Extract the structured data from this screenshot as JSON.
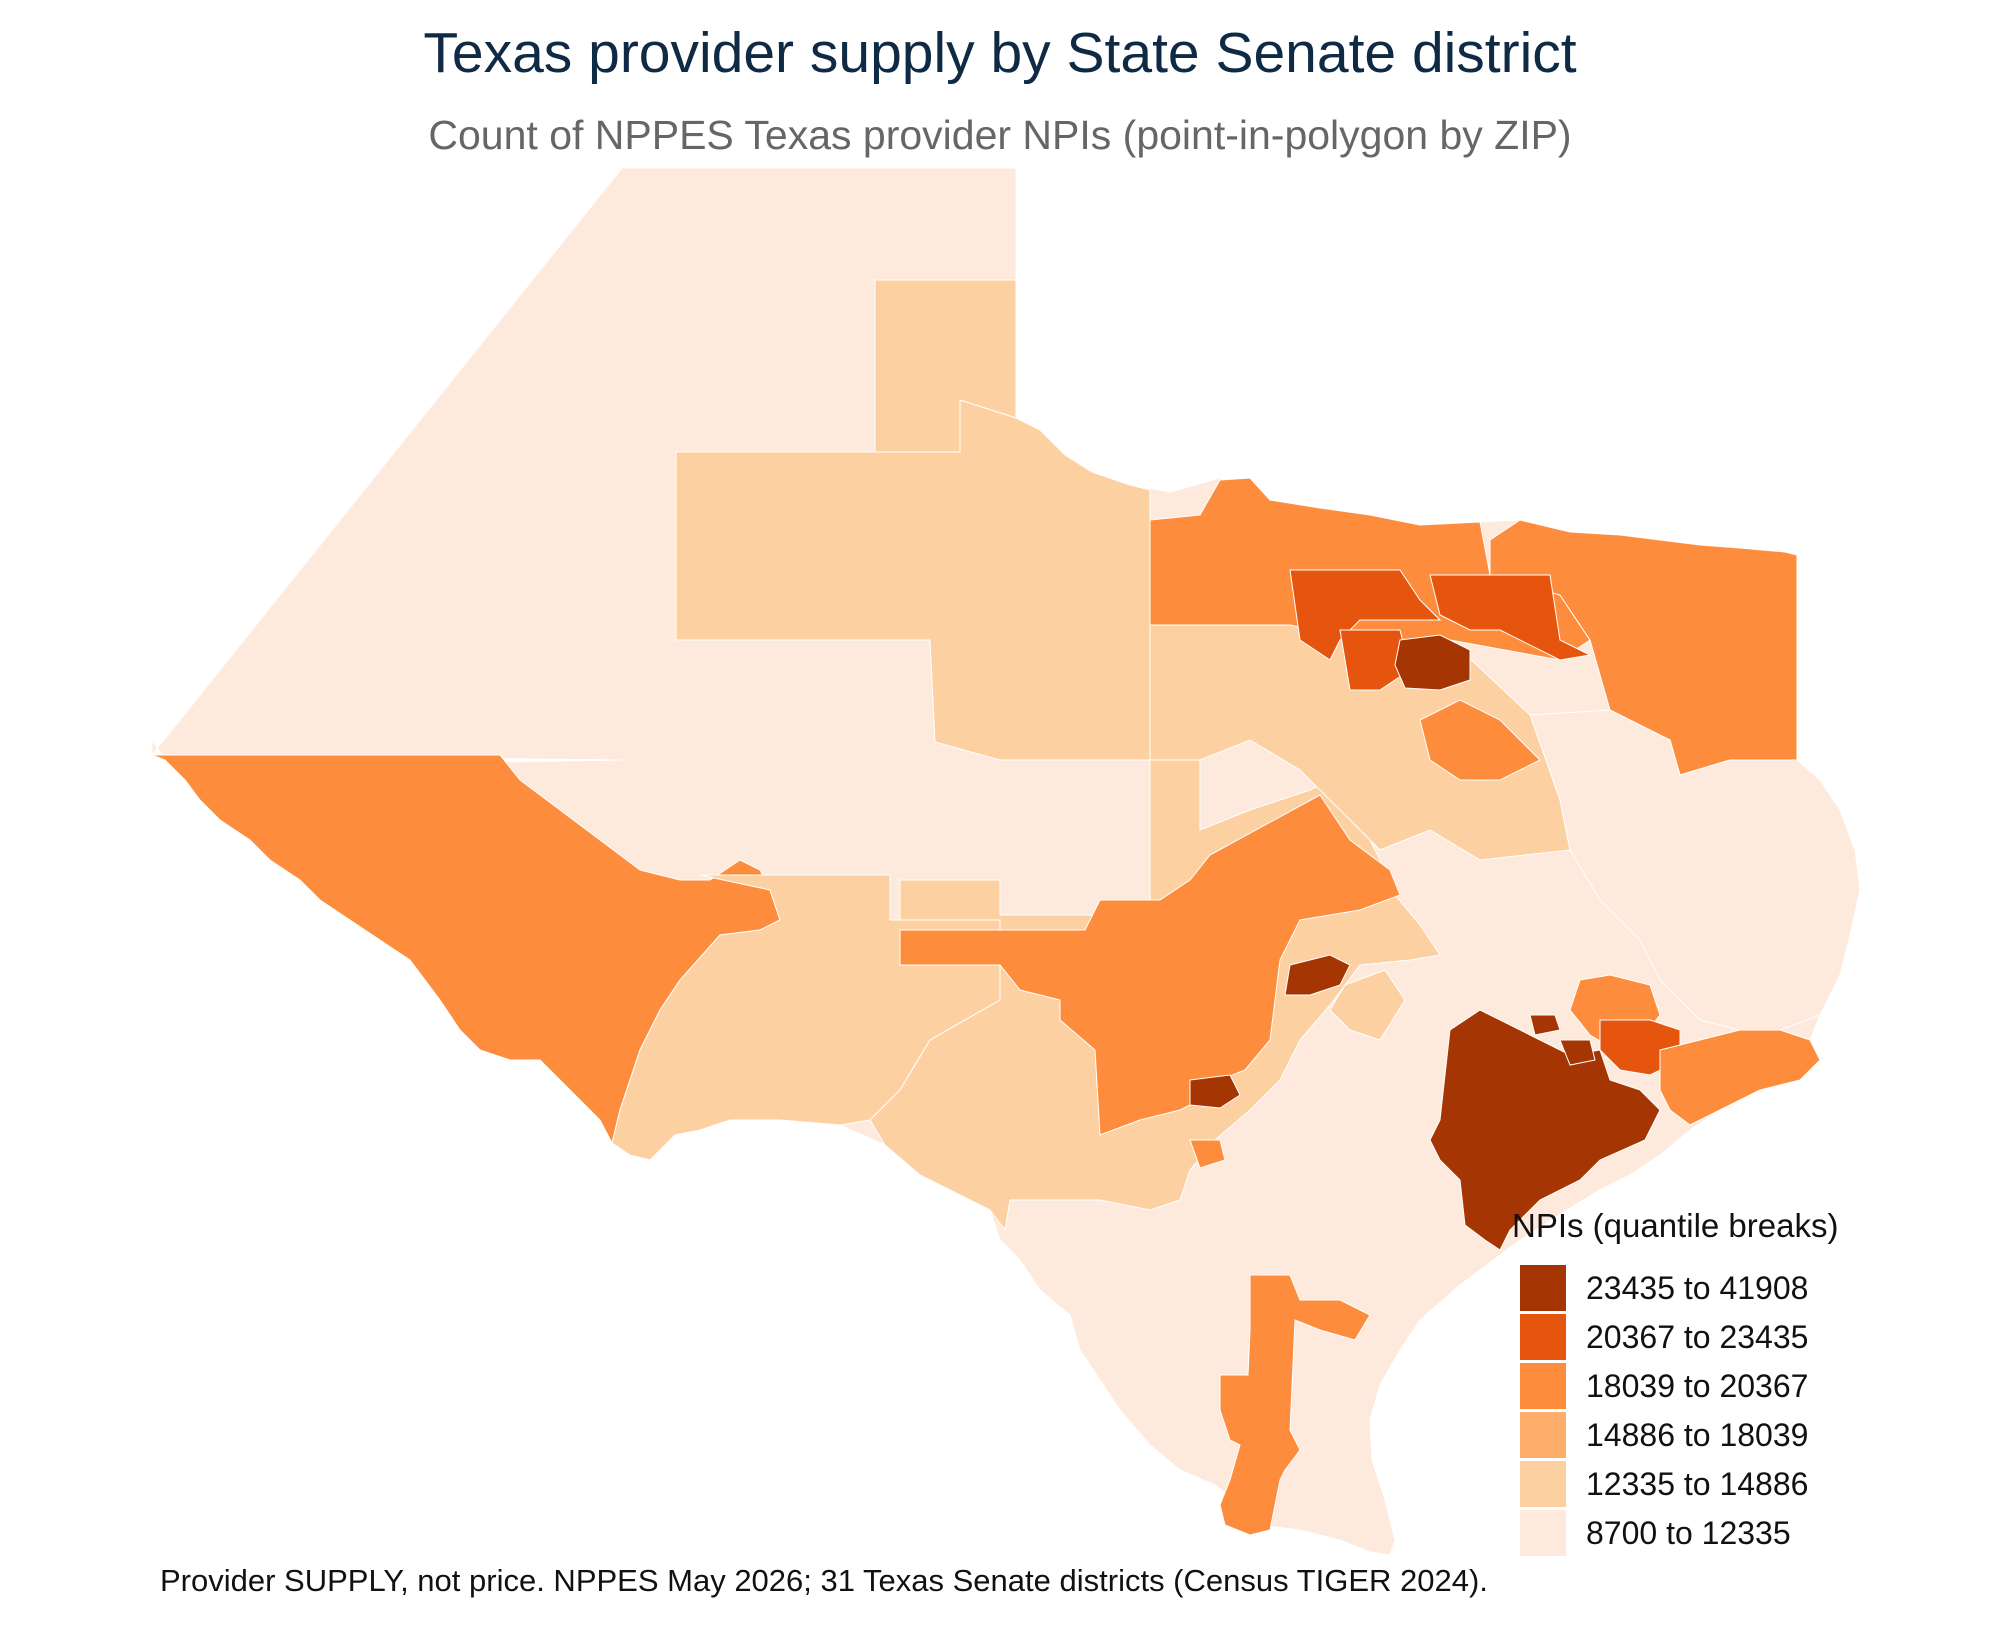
{
  "map": {
    "title": "Texas provider supply by State Senate district",
    "subtitle": "Count of NPPES Texas provider NPIs (point-in-polygon by ZIP)",
    "caption": "Provider SUPPLY, not price. NPPES May 2026; 31 Texas Senate districts (Census TIGER 2024).",
    "legend": {
      "title": "NPIs (quantile breaks)",
      "items": [
        {
          "label": "23435 to 41908",
          "color": "#a53603"
        },
        {
          "label": "20367 to 23435",
          "color": "#e6550d"
        },
        {
          "label": "18039 to 20367",
          "color": "#fd8d3c"
        },
        {
          "label": "14886 to 18039",
          "color": "#fdae6b"
        },
        {
          "label": "12335 to 14886",
          "color": "#fdd0a2"
        },
        {
          "label": "8700 to 12335",
          "color": "#feeadc"
        }
      ]
    },
    "district_classes": [
      "#feeadc",
      "#fdd0a2",
      "#fdae6b",
      "#fd8d3c",
      "#e6550d",
      "#a53603"
    ]
  }
}
